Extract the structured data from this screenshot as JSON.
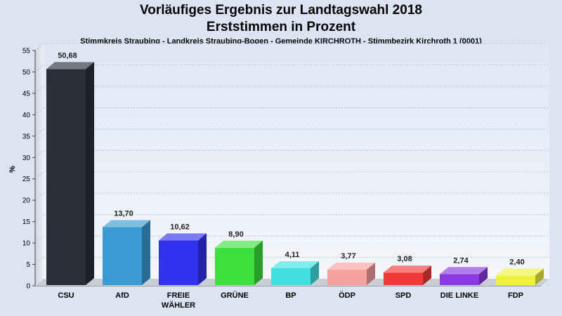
{
  "chart_data": {
    "type": "bar",
    "title": "Vorläufiges Ergebnis zur Landtagswahl 2018",
    "title_line2": "Erststimmen in Prozent",
    "subtitle": "Stimmkreis Straubing - Landkreis Straubing-Bogen - Gemeinde KIRCHROTH - Stimmbezirk Kirchroth 1 (0001)",
    "ylabel": "%",
    "ylim": [
      0,
      55
    ],
    "yticks": [
      0,
      5,
      10,
      15,
      20,
      25,
      30,
      35,
      40,
      45,
      50,
      55
    ],
    "grid": true,
    "categories": [
      "CSU",
      "AfD",
      "FREIE\nWÄHLER",
      "GRÜNE",
      "BP",
      "ÖDP",
      "SPD",
      "DIE LINKE",
      "FDP"
    ],
    "values": [
      50.68,
      13.7,
      10.62,
      8.9,
      4.11,
      3.77,
      3.08,
      2.74,
      2.4
    ],
    "value_labels": [
      "50,68",
      "13,70",
      "10,62",
      "8,90",
      "4,11",
      "3,77",
      "3,08",
      "2,74",
      "2,40"
    ],
    "colors": [
      "#2b2f38",
      "#3a9ad4",
      "#3232f0",
      "#3ee03e",
      "#40e0e0",
      "#f7a0a0",
      "#f03a3a",
      "#8a3ae0",
      "#f0f040"
    ]
  }
}
